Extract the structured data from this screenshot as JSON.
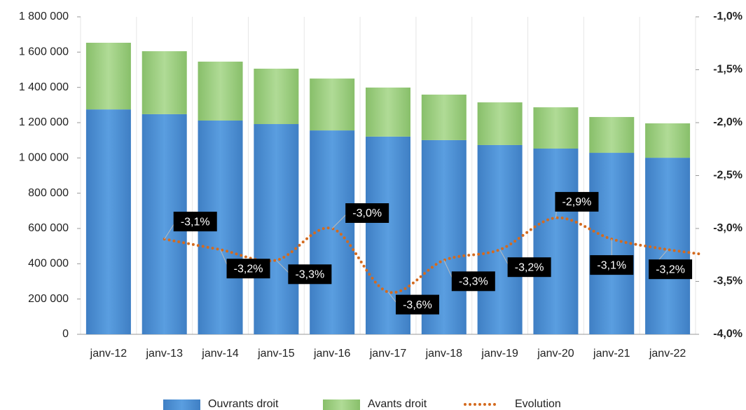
{
  "chart_data": {
    "type": "bar",
    "categories": [
      "janv-12",
      "janv-13",
      "janv-14",
      "janv-15",
      "janv-16",
      "janv-17",
      "janv-18",
      "janv-19",
      "janv-20",
      "janv-21",
      "janv-22"
    ],
    "series": [
      {
        "name": "Ouvrants droit",
        "color": "#4a8fd4",
        "values": [
          1275000,
          1248000,
          1212000,
          1192000,
          1156000,
          1121000,
          1101000,
          1073000,
          1053000,
          1029000,
          1001000
        ]
      },
      {
        "name": "Avants droit",
        "color": "#9ccf7f",
        "values": [
          378000,
          357000,
          334000,
          314000,
          294000,
          278000,
          258000,
          242000,
          234000,
          203000,
          195000
        ]
      },
      {
        "name": "Evolution",
        "color": "#d46a1e",
        "axis": "y2",
        "values": [
          null,
          -3.1,
          -3.2,
          -3.3,
          -3.0,
          -3.6,
          -3.3,
          -3.2,
          -2.9,
          -3.1,
          -3.2
        ],
        "value_labels": [
          null,
          "-3,1%",
          "-3,2%",
          "-3,3%",
          "-3,0%",
          "-3,6%",
          "-3,3%",
          "-3,2%",
          "-2,9%",
          "-3,1%",
          "-3,2%"
        ]
      }
    ],
    "ylim": [
      0,
      1800000
    ],
    "yticks": [
      0,
      {
        "value": 200000,
        "label": "200 000"
      },
      {
        "value": 400000,
        "label": "400 000"
      },
      {
        "value": 600000,
        "label": "600 000"
      },
      {
        "value": 800000,
        "label": "800 000"
      },
      {
        "value": 1000000,
        "label": "1 000 000"
      },
      {
        "value": 1200000,
        "label": "1 200 000"
      },
      {
        "value": 1400000,
        "label": "1 400 000"
      },
      {
        "value": 1600000,
        "label": "1 600 000"
      },
      {
        "value": 1800000,
        "label": "1 800 000"
      }
    ],
    "y2lim": [
      -4.0,
      -1.0
    ],
    "y2ticks": [
      {
        "value": -4,
        "label": "-4,0%"
      },
      {
        "value": -3.5,
        "label": "-3,5%"
      },
      {
        "value": -3,
        "label": "-3,0%"
      },
      {
        "value": -2.5,
        "label": "-2,5%"
      },
      {
        "value": -2,
        "label": "-2,0%"
      },
      {
        "value": -1.5,
        "label": "-1,5%"
      },
      {
        "value": -1,
        "label": "-1,0%"
      }
    ],
    "grid": true,
    "legend": "bottom"
  }
}
